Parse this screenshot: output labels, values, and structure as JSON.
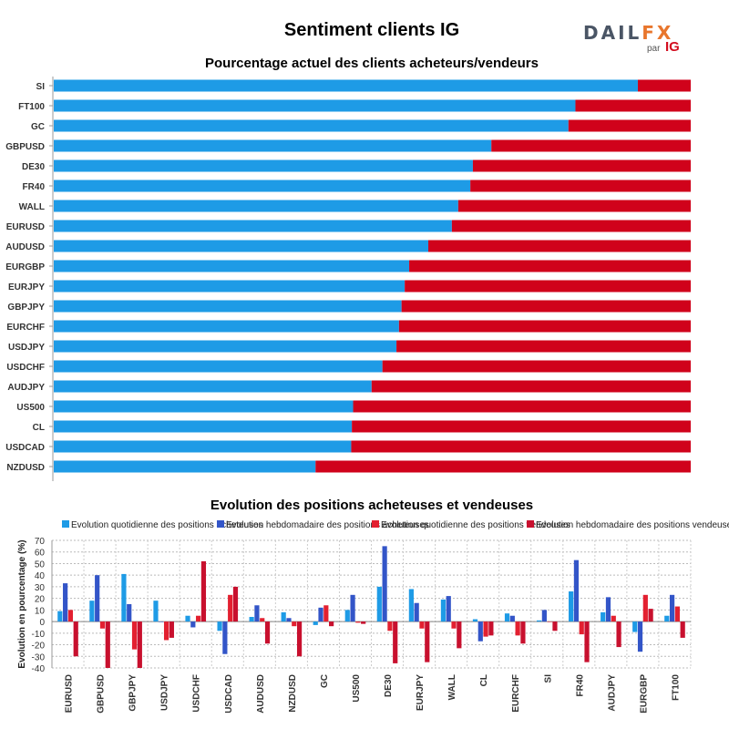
{
  "title": "Sentiment clients IG",
  "logo": {
    "brand_a": "DAIL",
    "brand_b": "FX",
    "brand_dark": "Y",
    "par": "par",
    "ig": "IG"
  },
  "colors": {
    "long": "#1e9be6",
    "short": "#d0021b",
    "daily_long": "#1e9be6",
    "weekly_long": "#3355c8",
    "daily_short": "#e32030",
    "weekly_short": "#c8102e"
  },
  "chart_data": [
    {
      "type": "bar",
      "orientation": "horizontal-stacked",
      "title": "Pourcentage actuel des clients acheteurs/vendeurs",
      "categories": [
        "SI",
        "FT100",
        "GC",
        "GBPUSD",
        "DE30",
        "FR40",
        "WALL",
        "EURUSD",
        "AUDUSD",
        "EURGBP",
        "EURJPY",
        "GBPJPY",
        "EURCHF",
        "USDJPY",
        "USDCHF",
        "AUDJPY",
        "US500",
        "CL",
        "USDCAD",
        "NZDUSD"
      ],
      "series": [
        {
          "name": "Acheteurs",
          "values": [
            91.7,
            81.9,
            80.8,
            68.7,
            65.8,
            65.4,
            63.5,
            62.5,
            58.8,
            55.8,
            55.1,
            54.6,
            54.2,
            53.8,
            51.6,
            49.9,
            47.0,
            46.8,
            46.7,
            41.1
          ]
        },
        {
          "name": "Vendeurs",
          "values": [
            8.3,
            18.1,
            19.2,
            31.3,
            34.2,
            34.6,
            36.5,
            37.5,
            41.2,
            44.2,
            44.9,
            45.4,
            45.8,
            46.2,
            48.4,
            50.1,
            53.0,
            53.2,
            53.3,
            58.9
          ]
        }
      ],
      "xlim": [
        0,
        100
      ]
    },
    {
      "type": "bar",
      "title": "Evolution des positions acheteuses et vendeuses",
      "ylabel": "Evolution en pourcentage (%)",
      "ylim": [
        -40,
        70
      ],
      "yticks": [
        70,
        60,
        50,
        40,
        30,
        20,
        10,
        0,
        -10,
        -20,
        -30,
        -40
      ],
      "categories": [
        "EURUSD",
        "GBPUSD",
        "GBPJPY",
        "USDJPY",
        "USDCHF",
        "USDCAD",
        "AUDUSD",
        "NZDUSD",
        "GC",
        "US500",
        "DE30",
        "EURJPY",
        "WALL",
        "CL",
        "EURCHF",
        "SI",
        "FR40",
        "AUDJPY",
        "EURGBP",
        "FT100"
      ],
      "series": [
        {
          "name": "Evolution quotidienne des positions acheteuses",
          "values": [
            9,
            18,
            41,
            18,
            5,
            -8,
            4,
            8,
            -3,
            10,
            30,
            28,
            19,
            2,
            7,
            1,
            26,
            8,
            -9,
            5
          ]
        },
        {
          "name": "Evolution hebdomadaire des positions acheteuses",
          "values": [
            33,
            40,
            15,
            0,
            -5,
            -28,
            14,
            3,
            12,
            23,
            65,
            16,
            22,
            -17,
            5,
            10,
            53,
            21,
            -26,
            23
          ]
        },
        {
          "name": "Evolution quotidienne des positions vendeuses",
          "values": [
            10,
            -6,
            -24,
            -16,
            5,
            23,
            3,
            -4,
            14,
            -1,
            -8,
            -6,
            -6,
            -13,
            -12,
            0,
            -11,
            5,
            23,
            13
          ]
        },
        {
          "name": "Evolution hebdomadaire des positions vendeuses",
          "values": [
            -30,
            -40,
            -40,
            -14,
            52,
            30,
            -19,
            -30,
            -4,
            -2,
            -36,
            -35,
            -23,
            -12,
            -19,
            -8,
            -35,
            -22,
            11,
            -14
          ]
        }
      ]
    }
  ]
}
